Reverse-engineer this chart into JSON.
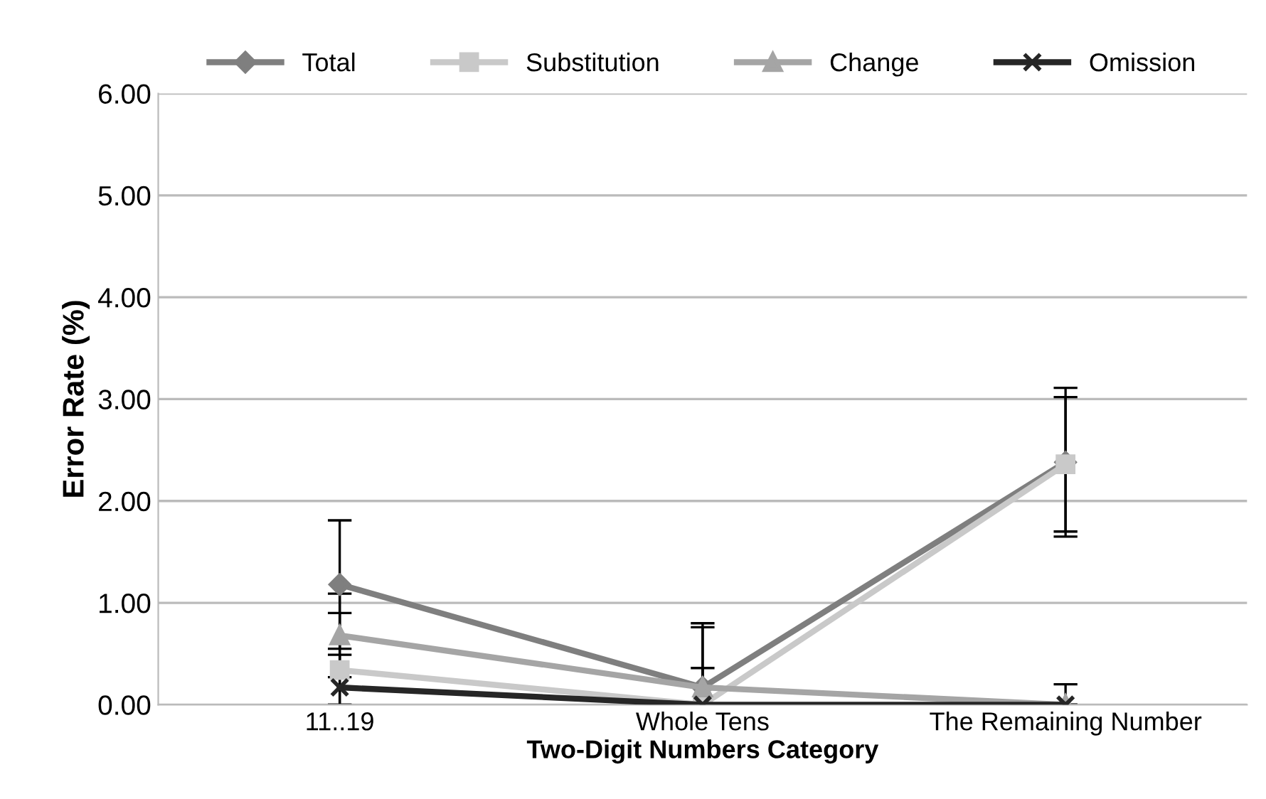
{
  "chart_data": {
    "type": "line",
    "xlabel": "Two-Digit Numbers Category",
    "ylabel": "Error Rate (%)",
    "categories": [
      "11..19",
      "Whole Tens",
      "The Remaining Number"
    ],
    "series": [
      {
        "name": "Total",
        "color": "#7f7f7f",
        "marker": "diamond",
        "values": [
          1.18,
          0.17,
          2.38
        ],
        "errors": [
          0.63,
          [
            0,
            0.8
          ],
          0.73
        ]
      },
      {
        "name": "Substitution",
        "color": "#c9c9c9",
        "marker": "square",
        "values": [
          0.34,
          0.0,
          2.36
        ],
        "errors": [
          [
            0,
            0.9
          ],
          [
            0,
            0.36
          ],
          0.66
        ]
      },
      {
        "name": "Change",
        "color": "#a5a5a5",
        "marker": "triangle",
        "values": [
          0.68,
          0.17,
          0.0
        ],
        "errors": [
          0.41,
          [
            0,
            0.76
          ],
          null
        ]
      },
      {
        "name": "Omission",
        "color": "#262626",
        "marker": "cross",
        "values": [
          0.17,
          0.0,
          0.0
        ],
        "errors": [
          [
            0,
            0.49
          ],
          null,
          [
            0,
            0.2
          ]
        ]
      }
    ],
    "ylim": [
      0,
      6
    ],
    "yticks": [
      {
        "value": 0,
        "label": "0.00"
      },
      {
        "value": 1,
        "label": "1.00"
      },
      {
        "value": 2,
        "label": "2.00"
      },
      {
        "value": 3,
        "label": "3.00"
      },
      {
        "value": 4,
        "label": "4.00"
      },
      {
        "value": 5,
        "label": "5.00"
      },
      {
        "value": 6,
        "label": "6.00"
      }
    ],
    "grid": "y",
    "legend": "top",
    "line_style": "solid"
  }
}
